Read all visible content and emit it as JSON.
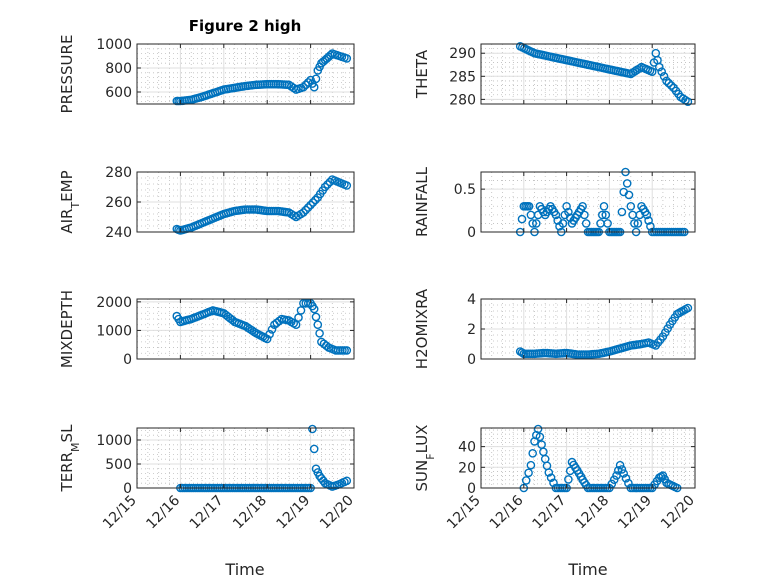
{
  "figure": {
    "title": "Figure 2 high"
  },
  "chart_data": [
    {
      "type": "scatter",
      "ylabel": "PRESSURE",
      "ylim": [
        500,
        1000
      ],
      "yticks": [
        600,
        800,
        1000
      ],
      "grid": "on",
      "series": [
        {
          "color": "#0072BD",
          "x": [
            "12/15 22:00",
            "12/16 00:00",
            "12/16 06:00",
            "12/16 12:00",
            "12/16 18:00",
            "12/17 00:00",
            "12/17 06:00",
            "12/17 12:00",
            "12/17 18:00",
            "12/18 00:00",
            "12/18 06:00",
            "12/18 12:00",
            "12/18 16:00",
            "12/18 20:00",
            "12/19 00:00",
            "12/19 02:00",
            "12/19 04:00",
            "12/19 06:00",
            "12/19 09:00",
            "12/19 12:00",
            "12/19 16:00",
            "12/19 20:00"
          ],
          "y": [
            525,
            525,
            535,
            560,
            590,
            620,
            635,
            650,
            660,
            665,
            665,
            660,
            620,
            640,
            700,
            640,
            780,
            840,
            880,
            920,
            900,
            880
          ]
        }
      ]
    },
    {
      "type": "scatter",
      "ylabel": "THETA",
      "ylim": [
        279,
        292
      ],
      "yticks": [
        280,
        285,
        290
      ],
      "grid": "on",
      "series": [
        {
          "color": "#0072BD",
          "x": [
            "12/15 22:00",
            "12/16 06:00",
            "12/16 12:00",
            "12/16 18:00",
            "12/17 00:00",
            "12/17 06:00",
            "12/17 12:00",
            "12/17 18:00",
            "12/18 00:00",
            "12/18 06:00",
            "12/18 12:00",
            "12/18 18:00",
            "12/19 00:00",
            "12/19 02:00",
            "12/19 04:00",
            "12/19 08:00",
            "12/19 12:00",
            "12/19 16:00",
            "12/19 20:00"
          ],
          "y": [
            291.5,
            290,
            289.5,
            289,
            288.5,
            288,
            287.5,
            287,
            286.5,
            286,
            285.5,
            287,
            286,
            290,
            287,
            284,
            282.5,
            280.5,
            279.5
          ]
        }
      ]
    },
    {
      "type": "scatter",
      "ylabel": "AIR_TEMP",
      "ylim": [
        240,
        280
      ],
      "yticks": [
        240,
        260,
        280
      ],
      "grid": "on",
      "series": [
        {
          "color": "#0072BD",
          "x": [
            "12/15 22:00",
            "12/16 00:00",
            "12/16 06:00",
            "12/16 12:00",
            "12/16 18:00",
            "12/17 00:00",
            "12/17 06:00",
            "12/17 12:00",
            "12/17 18:00",
            "12/18 00:00",
            "12/18 06:00",
            "12/18 12:00",
            "12/18 16:00",
            "12/18 20:00",
            "12/19 00:00",
            "12/19 04:00",
            "12/19 08:00",
            "12/19 12:00",
            "12/19 16:00",
            "12/19 20:00"
          ],
          "y": [
            242,
            241,
            243,
            246,
            249,
            252,
            254,
            255,
            255,
            254,
            254,
            253,
            250,
            253,
            258,
            263,
            270,
            275,
            273,
            271
          ]
        }
      ]
    },
    {
      "type": "scatter",
      "ylabel": "RAINFALL",
      "ylim": [
        0,
        0.7
      ],
      "yticks": [
        0,
        0.5
      ],
      "grid": "on",
      "series": [
        {
          "color": "#0072BD",
          "x": [
            "12/15 22:00",
            "12/16 00:00",
            "12/16 03:00",
            "12/16 06:00",
            "12/16 09:00",
            "12/16 12:00",
            "12/16 15:00",
            "12/16 18:00",
            "12/16 21:00",
            "12/17 00:00",
            "12/17 03:00",
            "12/17 06:00",
            "12/17 09:00",
            "12/17 12:00",
            "12/17 15:00",
            "12/17 18:00",
            "12/17 21:00",
            "12/18 00:00",
            "12/18 03:00",
            "12/18 06:00",
            "12/18 09:00",
            "12/18 12:00",
            "12/18 15:00",
            "12/18 18:00",
            "12/18 21:00",
            "12/19 00:00",
            "12/19 06:00",
            "12/19 12:00",
            "12/19 18:00"
          ],
          "y": [
            0,
            0.3,
            0.3,
            0,
            0.3,
            0.2,
            0.3,
            0.2,
            0,
            0.3,
            0.1,
            0.2,
            0.3,
            0,
            0,
            0,
            0.3,
            0,
            0,
            0,
            0.7,
            0.3,
            0,
            0.3,
            0.2,
            0,
            0,
            0,
            0
          ]
        }
      ]
    },
    {
      "type": "scatter",
      "ylabel": "MIXDEPTH",
      "ylim": [
        0,
        2100
      ],
      "yticks": [
        0,
        1000,
        2000
      ],
      "grid": "on",
      "series": [
        {
          "color": "#0072BD",
          "x": [
            "12/15 22:00",
            "12/16 00:00",
            "12/16 06:00",
            "12/16 12:00",
            "12/16 18:00",
            "12/17 00:00",
            "12/17 06:00",
            "12/17 12:00",
            "12/17 18:00",
            "12/18 00:00",
            "12/18 04:00",
            "12/18 08:00",
            "12/18 12:00",
            "12/18 16:00",
            "12/18 20:00",
            "12/19 00:00",
            "12/19 02:00",
            "12/19 04:00",
            "12/19 06:00",
            "12/19 10:00",
            "12/19 14:00",
            "12/19 20:00"
          ],
          "y": [
            1500,
            1300,
            1400,
            1550,
            1700,
            1600,
            1300,
            1150,
            900,
            700,
            1200,
            1400,
            1350,
            1200,
            1950,
            1950,
            1750,
            1200,
            600,
            400,
            300,
            300
          ]
        }
      ]
    },
    {
      "type": "scatter",
      "ylabel": "H2OMIXRA",
      "ylim": [
        0,
        4
      ],
      "yticks": [
        0,
        2,
        4
      ],
      "grid": "on",
      "series": [
        {
          "color": "#0072BD",
          "x": [
            "12/15 22:00",
            "12/16 00:00",
            "12/16 06:00",
            "12/16 12:00",
            "12/16 18:00",
            "12/17 00:00",
            "12/17 06:00",
            "12/17 12:00",
            "12/17 18:00",
            "12/18 00:00",
            "12/18 06:00",
            "12/18 12:00",
            "12/18 18:00",
            "12/18 22:00",
            "12/19 02:00",
            "12/19 06:00",
            "12/19 10:00",
            "12/19 14:00",
            "12/19 20:00"
          ],
          "y": [
            0.5,
            0.35,
            0.35,
            0.4,
            0.35,
            0.4,
            0.3,
            0.3,
            0.35,
            0.5,
            0.7,
            0.9,
            1.0,
            1.1,
            0.9,
            1.5,
            2.3,
            3.0,
            3.4
          ]
        }
      ]
    },
    {
      "type": "scatter",
      "ylabel": "TERR_MSL",
      "ylim": [
        0,
        1250
      ],
      "yticks": [
        0,
        500,
        1000
      ],
      "grid": "on",
      "series": [
        {
          "color": "#0072BD",
          "x": [
            "12/16 00:00",
            "12/16 12:00",
            "12/17 00:00",
            "12/17 12:00",
            "12/18 00:00",
            "12/18 12:00",
            "12/19 00:00",
            "12/19 01:00",
            "12/19 03:00",
            "12/19 05:00",
            "12/19 08:00",
            "12/19 12:00",
            "12/19 16:00",
            "12/19 20:00"
          ],
          "y": [
            0,
            0,
            0,
            0,
            0,
            0,
            0,
            1230,
            400,
            250,
            100,
            30,
            80,
            150
          ]
        }
      ]
    },
    {
      "type": "scatter",
      "ylabel": "SUN_FLUX",
      "ylim": [
        0,
        58
      ],
      "yticks": [
        0,
        20,
        40
      ],
      "grid": "on",
      "series": [
        {
          "color": "#0072BD",
          "x": [
            "12/16 00:00",
            "12/16 04:00",
            "12/16 06:00",
            "12/16 08:00",
            "12/16 10:00",
            "12/16 12:00",
            "12/16 14:00",
            "12/16 18:00",
            "12/17 00:00",
            "12/17 03:00",
            "12/17 06:00",
            "12/17 09:00",
            "12/17 12:00",
            "12/17 18:00",
            "12/18 00:00",
            "12/18 04:00",
            "12/18 06:00",
            "12/18 08:00",
            "12/18 12:00",
            "12/18 18:00",
            "12/19 00:00",
            "12/19 04:00",
            "12/19 06:00",
            "12/19 08:00",
            "12/19 14:00"
          ],
          "y": [
            0,
            22,
            45,
            57,
            42,
            28,
            15,
            0,
            0,
            25,
            17,
            8,
            0,
            0,
            0,
            12,
            22,
            14,
            0,
            0,
            0,
            10,
            12,
            5,
            0
          ]
        }
      ]
    }
  ],
  "xaxis": {
    "xlim": [
      "12/15 00:00",
      "12/20 00:00"
    ],
    "ticklabels": [
      "12/15",
      "12/16",
      "12/17",
      "12/18",
      "12/19",
      "12/20"
    ],
    "xlabel": "Time"
  }
}
